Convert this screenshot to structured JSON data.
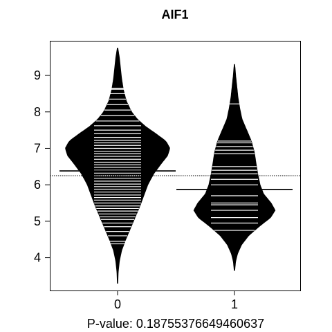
{
  "chart_data": {
    "type": "beanplot",
    "title": "AIF1",
    "xlabel": "P-value: 0.18755376649460637",
    "ylabel": "",
    "categories": [
      "0",
      "1"
    ],
    "ylim": [
      3.1,
      9.95
    ],
    "yticks": [
      4,
      5,
      6,
      7,
      8,
      9
    ],
    "overall_mean": 6.25,
    "group_means": [
      6.38,
      5.87
    ],
    "beans": [
      {
        "name": "0",
        "y_min": 3.3,
        "y_max": 9.75,
        "density": [
          [
            3.3,
            0.004
          ],
          [
            3.6,
            0.01
          ],
          [
            3.9,
            0.03
          ],
          [
            4.2,
            0.07
          ],
          [
            4.5,
            0.14
          ],
          [
            4.8,
            0.22
          ],
          [
            5.1,
            0.3
          ],
          [
            5.4,
            0.38
          ],
          [
            5.7,
            0.45
          ],
          [
            6.0,
            0.52
          ],
          [
            6.3,
            0.62
          ],
          [
            6.6,
            0.76
          ],
          [
            6.8,
            0.86
          ],
          [
            7.0,
            0.9
          ],
          [
            7.2,
            0.83
          ],
          [
            7.4,
            0.66
          ],
          [
            7.6,
            0.48
          ],
          [
            7.8,
            0.34
          ],
          [
            8.0,
            0.24
          ],
          [
            8.3,
            0.15
          ],
          [
            8.6,
            0.1
          ],
          [
            8.9,
            0.07
          ],
          [
            9.2,
            0.05
          ],
          [
            9.5,
            0.03
          ],
          [
            9.75,
            0.004
          ]
        ],
        "observations": [
          4.38,
          4.45,
          4.6,
          4.72,
          4.85,
          4.95,
          5.05,
          5.12,
          5.2,
          5.28,
          5.35,
          5.42,
          5.5,
          5.58,
          5.65,
          5.72,
          5.8,
          5.88,
          5.95,
          6.02,
          6.1,
          6.18,
          6.25,
          6.32,
          6.4,
          6.48,
          6.55,
          6.62,
          6.7,
          6.78,
          6.85,
          6.92,
          7.0,
          7.08,
          7.15,
          7.22,
          7.3,
          7.4,
          7.5,
          7.62,
          7.75,
          7.9,
          8.05,
          8.2,
          8.35,
          8.5,
          8.62,
          8.65
        ]
      },
      {
        "name": "1",
        "y_min": 3.65,
        "y_max": 9.3,
        "density": [
          [
            3.65,
            0.004
          ],
          [
            3.9,
            0.02
          ],
          [
            4.1,
            0.05
          ],
          [
            4.35,
            0.12
          ],
          [
            4.6,
            0.24
          ],
          [
            4.85,
            0.42
          ],
          [
            5.1,
            0.62
          ],
          [
            5.3,
            0.7
          ],
          [
            5.5,
            0.63
          ],
          [
            5.75,
            0.5
          ],
          [
            6.0,
            0.44
          ],
          [
            6.3,
            0.4
          ],
          [
            6.6,
            0.37
          ],
          [
            6.9,
            0.34
          ],
          [
            7.2,
            0.29
          ],
          [
            7.5,
            0.21
          ],
          [
            7.8,
            0.13
          ],
          [
            8.1,
            0.09
          ],
          [
            8.4,
            0.06
          ],
          [
            8.7,
            0.04
          ],
          [
            9.0,
            0.02
          ],
          [
            9.3,
            0.004
          ]
        ],
        "observations": [
          4.75,
          4.95,
          5.1,
          5.3,
          5.45,
          5.5,
          5.7,
          6.0,
          6.15,
          6.3,
          6.4,
          6.5,
          6.85,
          6.95,
          7.05,
          7.15,
          7.2,
          8.22
        ]
      }
    ]
  }
}
